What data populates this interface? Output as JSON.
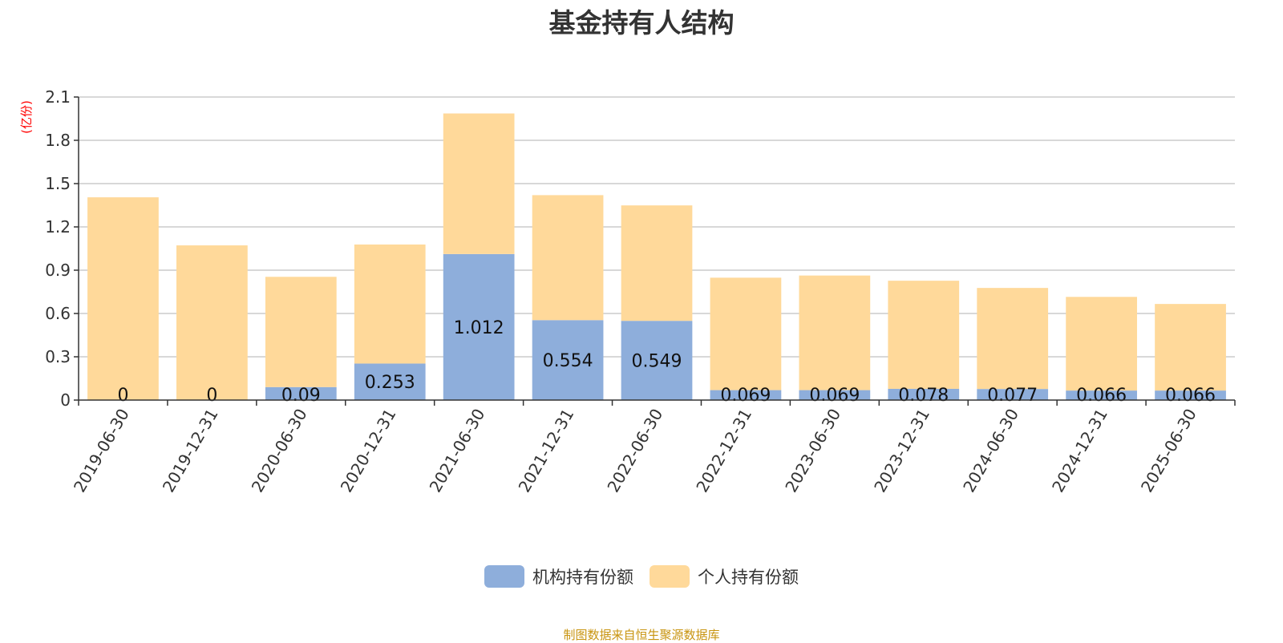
{
  "colors": {
    "institutional": "#8eaedb",
    "individual": "#ffd99a",
    "unit": "#ff0000",
    "source": "#c8940f"
  },
  "source_note": "制图数据来自恒生聚源数据库",
  "chart_data": {
    "type": "bar",
    "stacked": true,
    "title": "基金持有人结构",
    "ylabel": "(亿份)",
    "ylim": [
      0,
      2.1
    ],
    "yticks": [
      0,
      0.3,
      0.6,
      0.9,
      1.2,
      1.5,
      1.8,
      2.1
    ],
    "grid": true,
    "legend_position": "bottom-center",
    "categories": [
      "2019-06-30",
      "2019-12-31",
      "2020-06-30",
      "2020-12-31",
      "2021-06-30",
      "2021-12-31",
      "2022-06-30",
      "2022-12-31",
      "2023-06-30",
      "2023-12-31",
      "2024-06-30",
      "2024-12-31",
      "2025-06-30"
    ],
    "series": [
      {
        "name": "机构持有份额",
        "values": [
          0,
          0,
          0.09,
          0.253,
          1.012,
          0.554,
          0.549,
          0.069,
          0.069,
          0.078,
          0.077,
          0.066,
          0.066
        ],
        "labels": [
          "0",
          "0",
          "0.09",
          "0.253",
          "1.012",
          "0.554",
          "0.549",
          "0.069",
          "0.069",
          "0.078",
          "0.077",
          "0.066",
          "0.066"
        ]
      },
      {
        "name": "个人持有份额",
        "values": [
          1.405,
          1.072,
          0.764,
          0.825,
          0.974,
          0.866,
          0.8,
          0.779,
          0.794,
          0.749,
          0.7,
          0.649,
          0.6
        ]
      }
    ]
  }
}
